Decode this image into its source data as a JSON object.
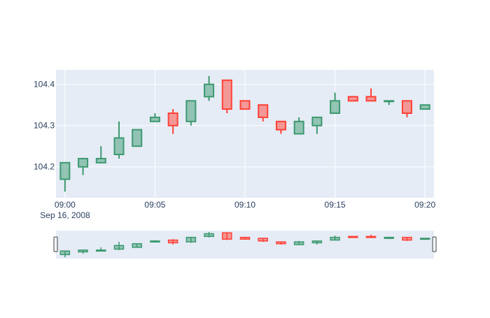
{
  "chart_data": {
    "type": "candlestick",
    "title": "",
    "xlabel": "",
    "ylabel": "",
    "x_date_label": "Sep 16, 2008",
    "x_tick_labels": [
      "09:00",
      "09:05",
      "09:10",
      "09:15",
      "09:20"
    ],
    "x_tick_minutes": [
      0,
      5,
      10,
      15,
      20
    ],
    "y_ticks": [
      104.2,
      104.3,
      104.4
    ],
    "y_tick_labels": [
      "104.2",
      "104.3",
      "104.4"
    ],
    "ylim": [
      104.125,
      104.435
    ],
    "xlim_minutes": [
      -0.5,
      20.5
    ],
    "grid": true,
    "rangeslider": true,
    "colors": {
      "increasing_line": "#3D9970",
      "increasing_fill": "rgba(61,153,112,0.5)",
      "decreasing_line": "#FF4136",
      "decreasing_fill": "rgba(255,65,54,0.5)",
      "plot_bg": "#E5ECF6",
      "grid": "#ffffff",
      "tick_text": "#2a3f5f"
    },
    "candles": [
      {
        "time": "09:00",
        "minute": 0,
        "open": 104.17,
        "high": 104.21,
        "low": 104.14,
        "close": 104.21
      },
      {
        "time": "09:01",
        "minute": 1,
        "open": 104.2,
        "high": 104.22,
        "low": 104.18,
        "close": 104.22
      },
      {
        "time": "09:02",
        "minute": 2,
        "open": 104.21,
        "high": 104.25,
        "low": 104.21,
        "close": 104.22
      },
      {
        "time": "09:03",
        "minute": 3,
        "open": 104.23,
        "high": 104.31,
        "low": 104.22,
        "close": 104.27
      },
      {
        "time": "09:04",
        "minute": 4,
        "open": 104.25,
        "high": 104.29,
        "low": 104.25,
        "close": 104.29
      },
      {
        "time": "09:05",
        "minute": 5,
        "open": 104.31,
        "high": 104.33,
        "low": 104.31,
        "close": 104.32
      },
      {
        "time": "09:06",
        "minute": 6,
        "open": 104.33,
        "high": 104.34,
        "low": 104.28,
        "close": 104.3
      },
      {
        "time": "09:07",
        "minute": 7,
        "open": 104.31,
        "high": 104.36,
        "low": 104.3,
        "close": 104.36
      },
      {
        "time": "09:08",
        "minute": 8,
        "open": 104.37,
        "high": 104.42,
        "low": 104.36,
        "close": 104.4
      },
      {
        "time": "09:09",
        "minute": 9,
        "open": 104.41,
        "high": 104.41,
        "low": 104.33,
        "close": 104.34
      },
      {
        "time": "09:10",
        "minute": 10,
        "open": 104.36,
        "high": 104.36,
        "low": 104.34,
        "close": 104.34
      },
      {
        "time": "09:11",
        "minute": 11,
        "open": 104.35,
        "high": 104.35,
        "low": 104.31,
        "close": 104.32
      },
      {
        "time": "09:12",
        "minute": 12,
        "open": 104.31,
        "high": 104.31,
        "low": 104.28,
        "close": 104.29
      },
      {
        "time": "09:13",
        "minute": 13,
        "open": 104.28,
        "high": 104.32,
        "low": 104.28,
        "close": 104.31
      },
      {
        "time": "09:14",
        "minute": 14,
        "open": 104.3,
        "high": 104.32,
        "low": 104.28,
        "close": 104.32
      },
      {
        "time": "09:15",
        "minute": 15,
        "open": 104.33,
        "high": 104.38,
        "low": 104.33,
        "close": 104.36
      },
      {
        "time": "09:16",
        "minute": 16,
        "open": 104.37,
        "high": 104.37,
        "low": 104.36,
        "close": 104.36
      },
      {
        "time": "09:17",
        "minute": 17,
        "open": 104.37,
        "high": 104.39,
        "low": 104.36,
        "close": 104.36
      },
      {
        "time": "09:18",
        "minute": 18,
        "open": 104.36,
        "high": 104.36,
        "low": 104.35,
        "close": 104.36
      },
      {
        "time": "09:19",
        "minute": 19,
        "open": 104.36,
        "high": 104.36,
        "low": 104.32,
        "close": 104.33
      },
      {
        "time": "09:20",
        "minute": 20,
        "open": 104.34,
        "high": 104.35,
        "low": 104.34,
        "close": 104.35
      }
    ]
  }
}
